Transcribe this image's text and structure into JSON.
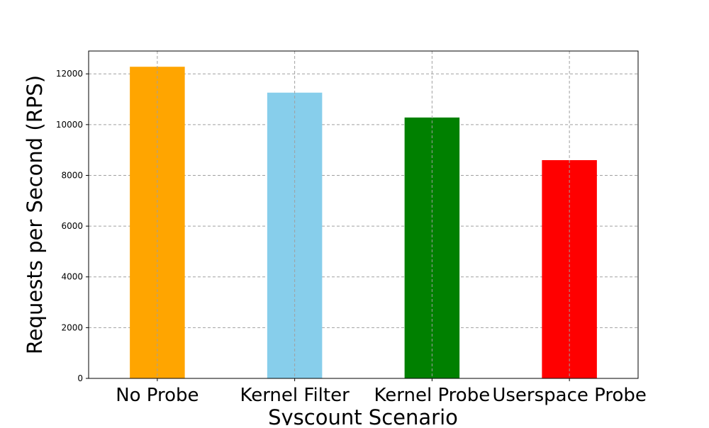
{
  "chart_data": {
    "type": "bar",
    "title": "",
    "xlabel": "Syscount Scenario",
    "ylabel": "Requests per Second (RPS)",
    "categories": [
      "No Probe",
      "Kernel Filter",
      "Kernel Probe",
      "Userspace Probe"
    ],
    "values": [
      12280,
      11260,
      10280,
      8600
    ],
    "colors": [
      "#ffa500",
      "#87ceeb",
      "#008000",
      "#ff0000"
    ],
    "ylim": [
      0,
      12900
    ],
    "yticks": [
      0,
      2000,
      4000,
      6000,
      8000,
      10000,
      12000
    ],
    "ytick_labels": [
      "0",
      "2000",
      "4000",
      "6000",
      "8000",
      "10000",
      "12000"
    ],
    "grid": true,
    "grid_color": "#a0a0a0",
    "legend": "none"
  }
}
